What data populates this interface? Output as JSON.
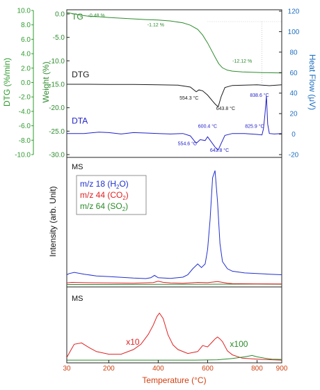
{
  "chart_data": {
    "type": "line",
    "colors": {
      "tg": "#2e8b2e",
      "dtg": "#1a1a1a",
      "dta": "#2020c8",
      "ms_h2o": "#2030d0",
      "ms_co2": "#e02020",
      "ms_so2": "#2a8a2a",
      "dtg_axis": "#2e9a2e",
      "heatflow_axis": "#1f6fc0",
      "xaxis": "#d04010"
    },
    "x_axis": {
      "label": "Temperature (°C)",
      "range": [
        30,
        900
      ],
      "ticks": [
        "30",
        "200",
        "400",
        "600",
        "800",
        "900"
      ],
      "tick_values": [
        30,
        200,
        400,
        600,
        800,
        900
      ]
    },
    "top_panel": {
      "dtg_axis": {
        "label": "DTG (%/min)",
        "ticks": [
          "10.0",
          "8.0",
          "6.0",
          "4.0",
          "2.0",
          "0.0",
          "-2.0",
          "-4.0",
          "-6.0",
          "-8.0",
          "-10.0"
        ],
        "range": [
          -10,
          10
        ]
      },
      "weight_axis": {
        "label": "Weight (%)",
        "ticks": [
          "0.0",
          "-5.0",
          "-10.0",
          "-15.0",
          "-20.0",
          "-25.0",
          "-30.0"
        ],
        "range": [
          -30,
          0
        ]
      },
      "heatflow_axis": {
        "label": "Heat Flow (μV)",
        "ticks": [
          "120",
          "100",
          "80",
          "60",
          "40",
          "20",
          "0",
          "-20"
        ],
        "range": [
          -20,
          120
        ]
      },
      "series_labels": {
        "tg": "TG",
        "dtg": "DTG",
        "dta": "DTA"
      },
      "tg": {
        "x": [
          30,
          60,
          90,
          120,
          160,
          200,
          250,
          300,
          350,
          400,
          450,
          500,
          530,
          560,
          580,
          600,
          615,
          630,
          645,
          660,
          680,
          700,
          740,
          780,
          820,
          860,
          900
        ],
        "y": [
          0.3,
          0.0,
          -0.3,
          -0.5,
          -0.6,
          -0.75,
          -0.9,
          -1.05,
          -1.2,
          -1.3,
          -1.5,
          -1.9,
          -2.4,
          -3.3,
          -4.5,
          -6.2,
          -7.7,
          -9.2,
          -10.6,
          -11.5,
          -12.0,
          -12.2,
          -12.35,
          -12.45,
          -12.5,
          -12.55,
          -12.6
        ]
      },
      "dtg": {
        "x": [
          30,
          100,
          200,
          300,
          400,
          480,
          530,
          554,
          565,
          580,
          600,
          620,
          632,
          643,
          655,
          670,
          700,
          750,
          800,
          850,
          900
        ],
        "y": [
          -15.0,
          -15.0,
          -15.05,
          -15.05,
          -15.1,
          -15.2,
          -15.6,
          -16.6,
          -16.2,
          -16.4,
          -17.3,
          -18.6,
          -19.3,
          -19.8,
          -17.6,
          -15.7,
          -15.25,
          -15.2,
          -15.1,
          -15.3,
          -15.1
        ]
      },
      "dta": {
        "x": [
          30,
          100,
          160,
          200,
          250,
          300,
          350,
          400,
          450,
          500,
          530,
          554,
          570,
          590,
          600,
          615,
          630,
          643,
          655,
          670,
          700,
          750,
          800,
          820,
          826,
          832,
          838,
          843,
          850,
          870,
          900
        ],
        "y": [
          -25.5,
          -25.5,
          -25.2,
          -25.3,
          -25.6,
          -25.3,
          -25.4,
          -25.5,
          -25.6,
          -25.5,
          -26.0,
          -27.6,
          -26.8,
          -27.0,
          -26.2,
          -27.3,
          -28.4,
          -29.0,
          -27.6,
          -25.9,
          -25.5,
          -25.5,
          -25.7,
          -25.8,
          -24.5,
          -21.5,
          -17.5,
          -23.5,
          -25.5,
          -25.6,
          -25.5
        ]
      },
      "annotations": [
        {
          "text": "-0.48 %",
          "x": 150,
          "y": -0.7,
          "color": "tg"
        },
        {
          "text": "-1.12 %",
          "x": 390,
          "y": -2.7,
          "color": "tg"
        },
        {
          "text": "-12.12 %",
          "x": 740,
          "y": -10.4,
          "color": "tg"
        },
        {
          "text": "554.3 °C",
          "x": 525,
          "y": -18.3,
          "color": "dtg"
        },
        {
          "text": "643.8 °C",
          "x": 673,
          "y": -20.5,
          "color": "dtg"
        },
        {
          "text": "838.6 °C",
          "x": 810,
          "y": -17.7,
          "color": "dta"
        },
        {
          "text": "600.4 °C",
          "x": 600,
          "y": -24.3,
          "color": "dta"
        },
        {
          "text": "825.9 °C",
          "x": 790,
          "y": -24.3,
          "color": "dta"
        },
        {
          "text": "554.6 °C",
          "x": 518,
          "y": -28.0,
          "color": "dta"
        },
        {
          "text": "643.8 °C",
          "x": 648,
          "y": -29.4,
          "color": "dta"
        }
      ]
    },
    "middle_panel": {
      "title": "MS",
      "ylabel": "Intensity (arb. Unit)",
      "ylim": [
        0,
        100
      ],
      "legend": [
        {
          "prefix": "m/z 18 (H",
          "sub": "2",
          "suffix": "O)",
          "color": "ms_h2o"
        },
        {
          "prefix": "m/z 44 (CO",
          "sub": "2",
          "suffix": ")",
          "color": "ms_co2"
        },
        {
          "prefix": "m/z 64 (SO",
          "sub": "2",
          "suffix": ")",
          "color": "ms_so2"
        }
      ],
      "h2o": {
        "x": [
          30,
          40,
          60,
          100,
          150,
          200,
          300,
          350,
          370,
          385,
          400,
          450,
          500,
          520,
          540,
          560,
          575,
          590,
          600,
          610,
          620,
          630,
          640,
          650,
          660,
          680,
          700,
          750,
          800,
          850,
          900
        ],
        "y": [
          9,
          10,
          11,
          9.5,
          8,
          7.5,
          6.2,
          5.8,
          6.5,
          8.5,
          6.5,
          6,
          7,
          9,
          14,
          18,
          15,
          18,
          30,
          55,
          90,
          96,
          70,
          35,
          20,
          14,
          12,
          10.5,
          10,
          9.5,
          9
        ]
      },
      "co2": {
        "x": [
          30,
          50,
          100,
          200,
          300,
          380,
          400,
          420,
          450,
          500,
          560,
          600,
          640,
          680,
          700,
          800,
          900
        ],
        "y": [
          2.2,
          2.6,
          2.4,
          2.2,
          2.0,
          2.5,
          3.6,
          2.7,
          2.2,
          1.9,
          2.6,
          2.4,
          3.4,
          2.0,
          1.6,
          1.4,
          1.3
        ]
      },
      "so2": {
        "x": [
          30,
          200,
          400,
          600,
          800,
          900
        ],
        "y": [
          0.9,
          0.9,
          1.0,
          1.1,
          1.2,
          1.1
        ]
      }
    },
    "bottom_panel": {
      "title": "MS",
      "labels": {
        "co2_scale": "x10",
        "so2_scale": "x100"
      },
      "ylim": [
        0,
        100
      ],
      "co2x10": {
        "x": [
          30,
          45,
          60,
          90,
          120,
          150,
          200,
          250,
          300,
          330,
          360,
          380,
          395,
          405,
          420,
          440,
          460,
          480,
          520,
          560,
          580,
          600,
          620,
          630,
          640,
          650,
          660,
          680,
          700,
          740,
          780,
          820,
          860,
          900
        ],
        "y": [
          6,
          16,
          26,
          28,
          21,
          15,
          11,
          11,
          18,
          26,
          41,
          55,
          68,
          73,
          65,
          40,
          25,
          18,
          12,
          15,
          24,
          22,
          30,
          34,
          37,
          34,
          30,
          16,
          10,
          5,
          4,
          3,
          2.5,
          2
        ]
      },
      "so2x100": {
        "x": [
          30,
          200,
          400,
          550,
          640,
          700,
          750,
          780,
          800,
          830,
          860,
          900
        ],
        "y": [
          2,
          2,
          2,
          2,
          2.5,
          4.5,
          7,
          9,
          7,
          5,
          3.5,
          3
        ]
      }
    }
  }
}
